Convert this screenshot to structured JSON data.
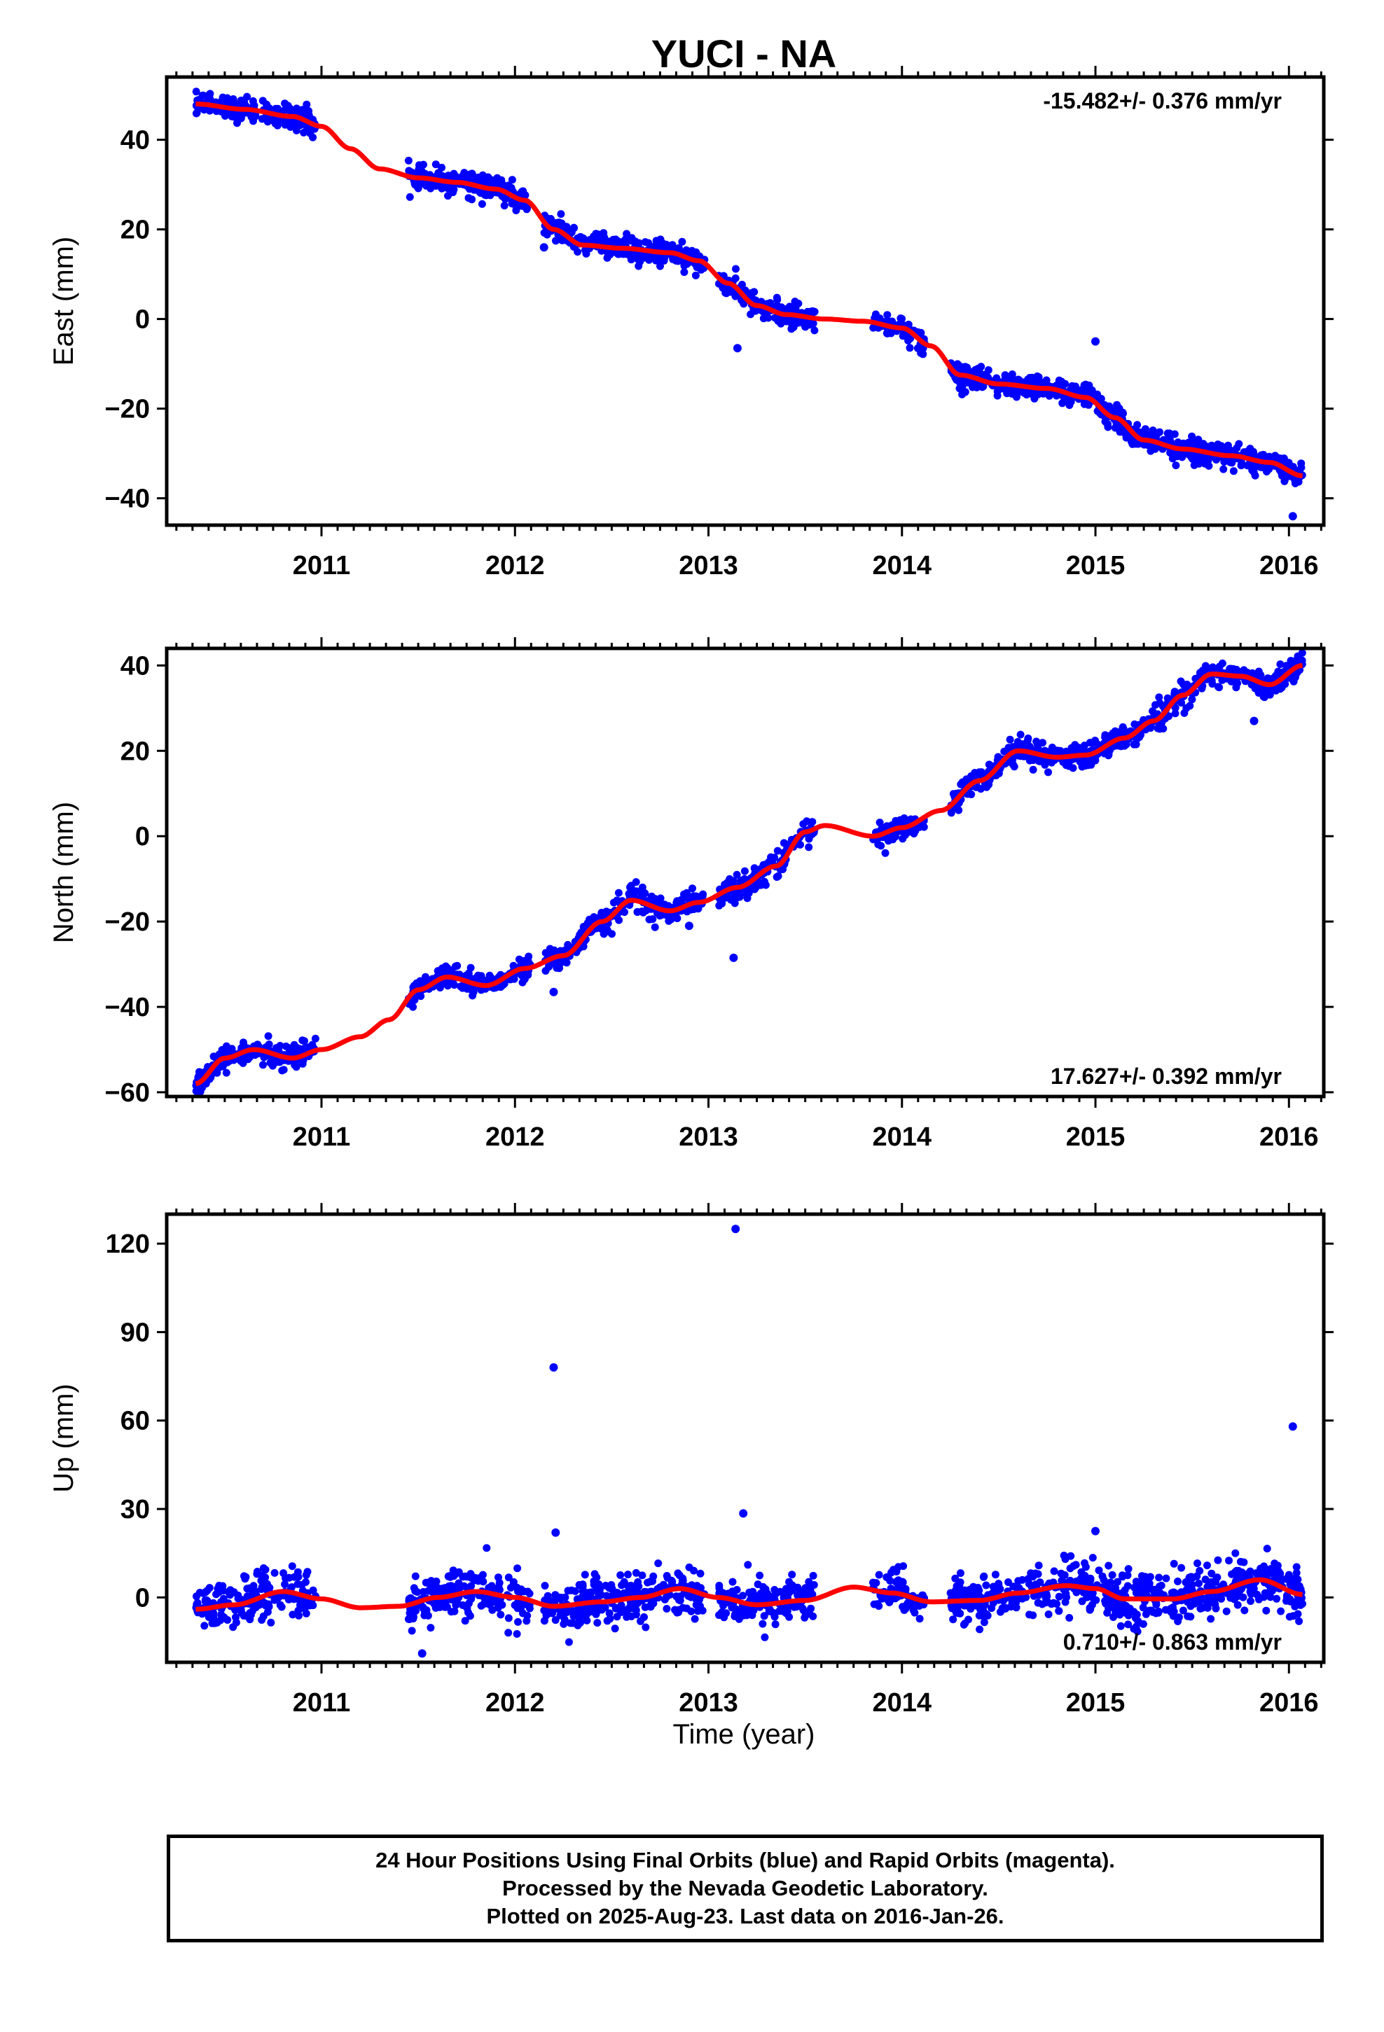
{
  "title": "YUCI - NA",
  "xlabel": "Time (year)",
  "footer": {
    "line1": "24 Hour Positions Using Final Orbits (blue) and Rapid Orbits (magenta).",
    "line2": "Processed by the Nevada Geodetic Laboratory.",
    "line3": "Plotted on 2025-Aug-23. Last data on 2016-Jan-26."
  },
  "chart_data": [
    {
      "type": "scatter",
      "ylabel": "East (mm)",
      "xlim": [
        2010.2,
        2016.18
      ],
      "ylim": [
        -46,
        54
      ],
      "yticks": [
        -40,
        -20,
        0,
        20,
        40
      ],
      "xticks": [
        2011,
        2012,
        2013,
        2014,
        2015,
        2016
      ],
      "annotation": "-15.482+/- 0.376 mm/yr",
      "annotation_position": "top-right",
      "point_color": "#0000ff",
      "fit_color": "#ff0000",
      "segments": [
        [
          2010.35,
          2010.97
        ],
        [
          2011.45,
          2012.08
        ],
        [
          2012.15,
          2012.98
        ],
        [
          2013.05,
          2013.55
        ],
        [
          2013.85,
          2014.12
        ],
        [
          2014.25,
          2016.07
        ]
      ],
      "fit": [
        [
          2010.35,
          48
        ],
        [
          2010.6,
          46.8
        ],
        [
          2010.85,
          45.2
        ],
        [
          2011.0,
          43
        ],
        [
          2011.15,
          38
        ],
        [
          2011.3,
          33.5
        ],
        [
          2011.5,
          31.5
        ],
        [
          2011.7,
          30.5
        ],
        [
          2011.9,
          29
        ],
        [
          2012.05,
          26.5
        ],
        [
          2012.2,
          20
        ],
        [
          2012.35,
          16.5
        ],
        [
          2012.55,
          15.8
        ],
        [
          2012.8,
          14.8
        ],
        [
          2012.95,
          13
        ],
        [
          2013.1,
          8
        ],
        [
          2013.25,
          3
        ],
        [
          2013.4,
          1
        ],
        [
          2013.6,
          0
        ],
        [
          2013.8,
          -0.5
        ],
        [
          2014.0,
          -2
        ],
        [
          2014.15,
          -6
        ],
        [
          2014.3,
          -12.5
        ],
        [
          2014.5,
          -14.5
        ],
        [
          2014.75,
          -15.5
        ],
        [
          2014.95,
          -17.5
        ],
        [
          2015.1,
          -22
        ],
        [
          2015.25,
          -27
        ],
        [
          2015.45,
          -29
        ],
        [
          2015.7,
          -30.5
        ],
        [
          2015.9,
          -32
        ],
        [
          2016.07,
          -35
        ]
      ],
      "outliers": [
        [
          2013.15,
          -6.5
        ],
        [
          2015.0,
          -5
        ],
        [
          2016.02,
          -44
        ],
        [
          2012.15,
          16
        ]
      ]
    },
    {
      "type": "scatter",
      "ylabel": "North (mm)",
      "xlim": [
        2010.2,
        2016.18
      ],
      "ylim": [
        -61,
        44
      ],
      "yticks": [
        -60,
        -40,
        -20,
        0,
        20,
        40
      ],
      "xticks": [
        2011,
        2012,
        2013,
        2014,
        2015,
        2016
      ],
      "annotation": "17.627+/- 0.392 mm/yr",
      "annotation_position": "bottom-right",
      "point_color": "#0000ff",
      "fit_color": "#ff0000",
      "segments": [
        [
          2010.35,
          2010.97
        ],
        [
          2011.45,
          2012.08
        ],
        [
          2012.15,
          2012.98
        ],
        [
          2013.05,
          2013.55
        ],
        [
          2013.85,
          2014.12
        ],
        [
          2014.25,
          2016.07
        ]
      ],
      "fit": [
        [
          2010.35,
          -58
        ],
        [
          2010.5,
          -52
        ],
        [
          2010.65,
          -50
        ],
        [
          2010.85,
          -52
        ],
        [
          2011.0,
          -50
        ],
        [
          2011.2,
          -47
        ],
        [
          2011.35,
          -43
        ],
        [
          2011.5,
          -36
        ],
        [
          2011.65,
          -33
        ],
        [
          2011.85,
          -35
        ],
        [
          2012.05,
          -31
        ],
        [
          2012.25,
          -28
        ],
        [
          2012.45,
          -20
        ],
        [
          2012.6,
          -15
        ],
        [
          2012.8,
          -17.5
        ],
        [
          2012.95,
          -15.5
        ],
        [
          2013.15,
          -12
        ],
        [
          2013.35,
          -7
        ],
        [
          2013.5,
          1
        ],
        [
          2013.6,
          2.5
        ],
        [
          2013.85,
          0
        ],
        [
          2014.0,
          2
        ],
        [
          2014.2,
          6
        ],
        [
          2014.4,
          13
        ],
        [
          2014.6,
          20
        ],
        [
          2014.8,
          18.5
        ],
        [
          2014.95,
          19
        ],
        [
          2015.15,
          23
        ],
        [
          2015.3,
          27
        ],
        [
          2015.45,
          33
        ],
        [
          2015.6,
          38
        ],
        [
          2015.75,
          37.5
        ],
        [
          2015.9,
          35.5
        ],
        [
          2016.07,
          40
        ]
      ],
      "outliers": [
        [
          2013.13,
          -28.5
        ],
        [
          2012.2,
          -36.5
        ],
        [
          2015.82,
          27
        ],
        [
          2012.9,
          -21
        ]
      ]
    },
    {
      "type": "scatter",
      "ylabel": "Up (mm)",
      "xlim": [
        2010.2,
        2016.18
      ],
      "ylim": [
        -22,
        130
      ],
      "yticks": [
        0,
        30,
        60,
        90,
        120
      ],
      "xticks": [
        2011,
        2012,
        2013,
        2014,
        2015,
        2016
      ],
      "annotation": "0.710+/- 0.863 mm/yr",
      "annotation_position": "bottom-right",
      "point_color": "#0000ff",
      "fit_color": "#ff0000",
      "segments": [
        [
          2010.35,
          2010.97
        ],
        [
          2011.45,
          2012.08
        ],
        [
          2012.15,
          2012.98
        ],
        [
          2013.05,
          2013.55
        ],
        [
          2013.85,
          2014.12
        ],
        [
          2014.25,
          2016.07
        ]
      ],
      "fit": [
        [
          2010.35,
          -4
        ],
        [
          2010.55,
          -2.5
        ],
        [
          2010.8,
          2
        ],
        [
          2011.0,
          -0.5
        ],
        [
          2011.2,
          -3.5
        ],
        [
          2011.4,
          -3
        ],
        [
          2011.6,
          0
        ],
        [
          2011.8,
          2
        ],
        [
          2012.0,
          0
        ],
        [
          2012.2,
          -3
        ],
        [
          2012.45,
          -1.5
        ],
        [
          2012.65,
          0
        ],
        [
          2012.85,
          3
        ],
        [
          2013.05,
          0
        ],
        [
          2013.25,
          -2.5
        ],
        [
          2013.5,
          -1
        ],
        [
          2013.75,
          3.5
        ],
        [
          2013.95,
          1.5
        ],
        [
          2014.15,
          -1.5
        ],
        [
          2014.4,
          -1
        ],
        [
          2014.6,
          1.5
        ],
        [
          2014.85,
          4
        ],
        [
          2015.0,
          3
        ],
        [
          2015.15,
          -0.5
        ],
        [
          2015.4,
          -0.5
        ],
        [
          2015.6,
          2
        ],
        [
          2015.85,
          6
        ],
        [
          2016.07,
          1
        ]
      ],
      "outliers": [
        [
          2013.14,
          125
        ],
        [
          2012.2,
          78
        ],
        [
          2016.02,
          58
        ],
        [
          2012.21,
          22
        ],
        [
          2013.18,
          28.5
        ],
        [
          2015.0,
          22.5
        ],
        [
          2011.52,
          -19
        ]
      ]
    }
  ]
}
